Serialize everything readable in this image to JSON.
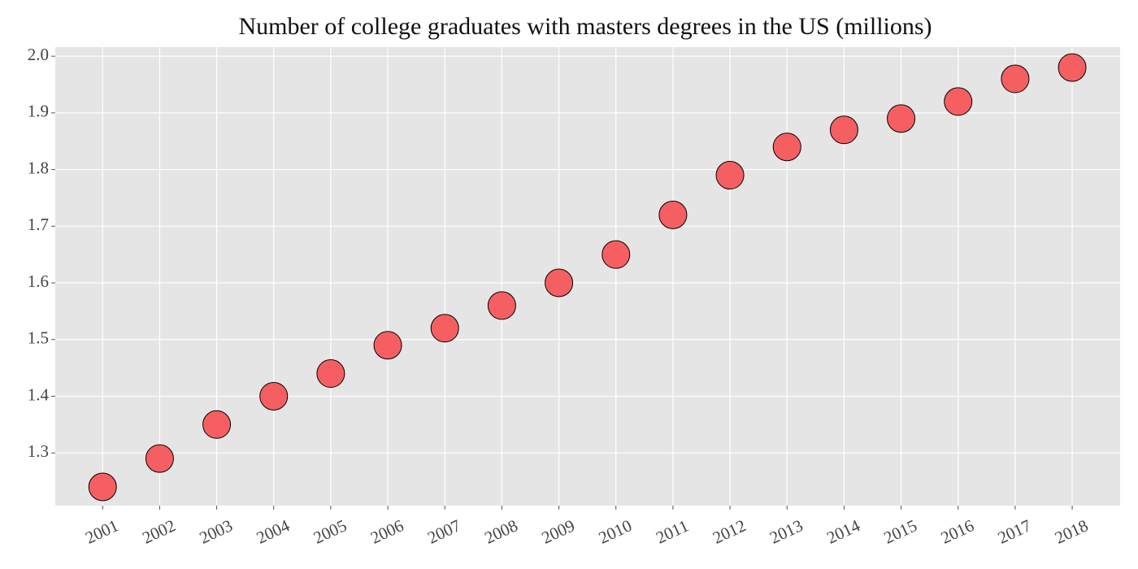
{
  "chart_data": {
    "type": "scatter",
    "title": "Number of college graduates with masters degrees in the US (millions)",
    "x": [
      2001,
      2002,
      2003,
      2004,
      2005,
      2006,
      2007,
      2008,
      2009,
      2010,
      2011,
      2012,
      2013,
      2014,
      2015,
      2016,
      2017,
      2018
    ],
    "values": [
      1.24,
      1.29,
      1.35,
      1.4,
      1.44,
      1.49,
      1.52,
      1.56,
      1.6,
      1.65,
      1.72,
      1.79,
      1.84,
      1.87,
      1.89,
      1.92,
      1.96,
      1.98
    ],
    "color": "#f65f61",
    "edgecolor": "#000000",
    "xlim": [
      2000.17,
      2018.84
    ],
    "xticks": [
      2001,
      2002,
      2003,
      2004,
      2005,
      2006,
      2007,
      2008,
      2009,
      2010,
      2011,
      2012,
      2013,
      2014,
      2015,
      2016,
      2017,
      2018
    ],
    "ylim": [
      1.207,
      2.016
    ],
    "yticks": [
      1.3,
      1.4,
      1.5,
      1.6,
      1.7,
      1.8,
      1.9,
      {
        "value": 2,
        "label": "2.0"
      }
    ],
    "grid": true
  }
}
